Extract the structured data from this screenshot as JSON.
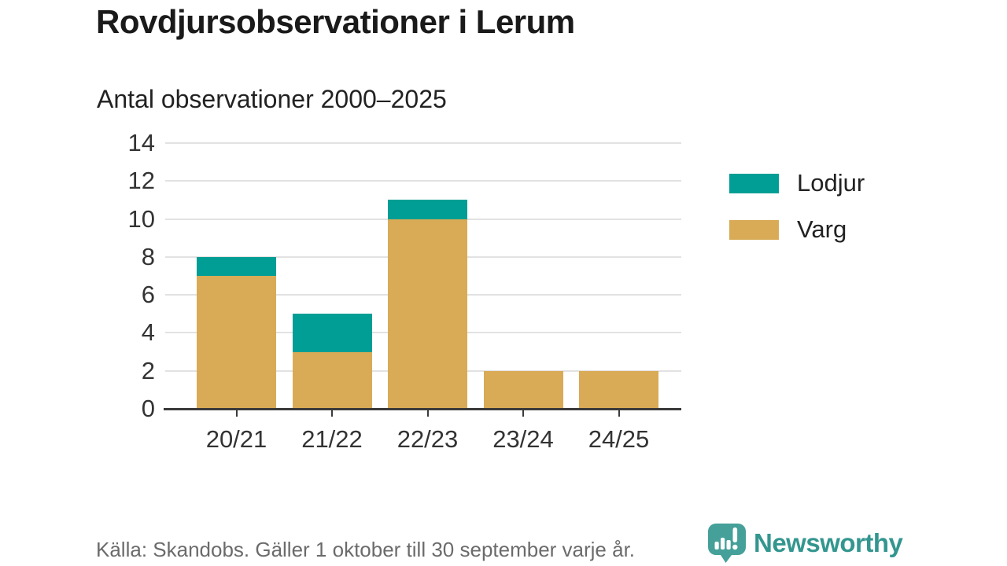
{
  "header": {
    "title": "Rovdjursobservationer i Lerum",
    "subtitle": "Antal observationer 2000–2025"
  },
  "chart_data": {
    "type": "bar",
    "stacked": true,
    "title": "Rovdjursobservationer i Lerum",
    "subtitle": "Antal observationer 2000–2025",
    "categories": [
      "20/21",
      "21/22",
      "22/23",
      "23/24",
      "24/25"
    ],
    "series": [
      {
        "name": "Varg",
        "color": "#d9ab56",
        "values": [
          7,
          3,
          10,
          2,
          2
        ]
      },
      {
        "name": "Lodjur",
        "color": "#009e94",
        "values": [
          1,
          2,
          1,
          0,
          0
        ]
      }
    ],
    "stack_order": "bottom-to-top",
    "totals": [
      8,
      5,
      11,
      2,
      2
    ],
    "xlabel": "",
    "ylabel": "",
    "ylim": [
      0,
      14
    ],
    "yticks": [
      0,
      2,
      4,
      6,
      8,
      10,
      12,
      14
    ],
    "grid": true,
    "legend_position": "right"
  },
  "legend": {
    "items": [
      {
        "label": "Lodjur",
        "color": "#009e94"
      },
      {
        "label": "Varg",
        "color": "#d9ab56"
      }
    ]
  },
  "footer": {
    "source": "Källa: Skandobs. Gäller 1 oktober till 30 september varje år.",
    "brand": "Newsworthy"
  },
  "colors": {
    "lodjur": "#009e94",
    "varg": "#d9ab56",
    "gridline": "#e2e2e2",
    "axis": "#3a3a3a",
    "brand_teal": "#45a099",
    "brand_text": "#33968f",
    "source_text": "#6b6b6b"
  }
}
